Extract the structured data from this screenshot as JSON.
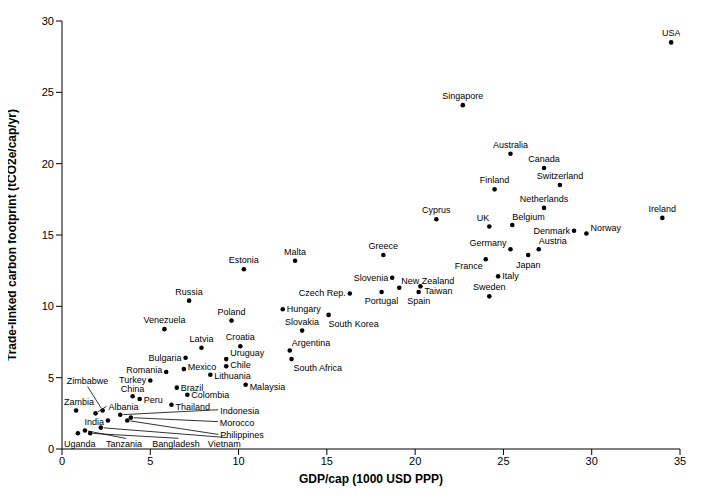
{
  "chart_data": {
    "type": "scatter",
    "x_label": "GDP/cap (1000 USD PPP)",
    "y_label": "Trade-linked carbon footprint (tCO2e/cap/yr)",
    "color": "#000000",
    "marker": "circle",
    "grid": false,
    "xlim": [
      0,
      35
    ],
    "ylim": [
      0,
      30
    ],
    "xticks": [
      0,
      5,
      10,
      15,
      20,
      25,
      30,
      35
    ],
    "yticks": [
      0,
      5,
      10,
      15,
      20,
      25,
      30
    ],
    "labels": [
      "USA",
      "Singapore",
      "Australia",
      "Canada",
      "Switzerland",
      "Finland",
      "Netherlands",
      "Ireland",
      "Cyprus",
      "UK",
      "Belgium",
      "Denmark",
      "Norway",
      "Germany",
      "Austria",
      "Japan",
      "France",
      "Italy",
      "Sweden",
      "Greece",
      "Slovenia",
      "New Zealand",
      "Taiwan",
      "Spain",
      "Portugal",
      "Czech Rep.",
      "South Korea",
      "Hungary",
      "Malta",
      "Estonia",
      "Russia",
      "Poland",
      "Slovakia",
      "Venezuela",
      "Latvia",
      "Croatia",
      "Argentina",
      "South Africa",
      "Bulgaria",
      "Uruguay",
      "Chile",
      "Mexico",
      "Romania",
      "Lithuania",
      "Malaysia",
      "Turkey",
      "Brazil",
      "Colombia",
      "Thailand",
      "China",
      "Peru",
      "Zambia",
      "Zimbabwe",
      "Albania",
      "India",
      "Indonesia",
      "Morocco",
      "Philippines",
      "Uganda",
      "Tanzania",
      "Bangladesh",
      "Vietnam"
    ],
    "x": [
      34.5,
      22.7,
      25.4,
      27.3,
      28.2,
      24.5,
      27.3,
      34.0,
      21.2,
      24.2,
      25.5,
      29.0,
      29.7,
      25.4,
      27.0,
      26.4,
      24.0,
      24.7,
      24.2,
      18.2,
      18.7,
      19.1,
      20.3,
      20.2,
      18.1,
      16.3,
      15.1,
      12.5,
      13.2,
      10.3,
      7.2,
      9.6,
      13.6,
      5.8,
      7.9,
      10.1,
      12.9,
      13.0,
      7.0,
      9.3,
      9.3,
      6.9,
      5.9,
      8.4,
      10.4,
      5.0,
      6.5,
      7.1,
      6.2,
      4.0,
      4.4,
      0.8,
      2.3,
      1.9,
      2.6,
      3.3,
      3.9,
      3.7,
      0.9,
      1.3,
      1.6,
      2.2
    ],
    "values": [
      28.5,
      24.1,
      20.7,
      19.7,
      18.5,
      18.2,
      16.9,
      16.2,
      16.1,
      15.6,
      15.7,
      15.3,
      15.1,
      14.0,
      14.0,
      13.6,
      13.3,
      12.1,
      10.7,
      13.6,
      12.0,
      11.3,
      11.4,
      11.0,
      11.0,
      10.9,
      9.4,
      9.8,
      13.2,
      12.6,
      10.4,
      9.0,
      8.3,
      8.4,
      7.1,
      7.2,
      6.9,
      6.3,
      6.4,
      6.3,
      5.8,
      5.6,
      5.4,
      5.2,
      4.5,
      4.8,
      4.3,
      3.8,
      3.1,
      3.7,
      3.5,
      2.7,
      2.7,
      2.5,
      2.0,
      2.4,
      2.2,
      2.0,
      1.1,
      1.3,
      1.1,
      1.5
    ]
  }
}
